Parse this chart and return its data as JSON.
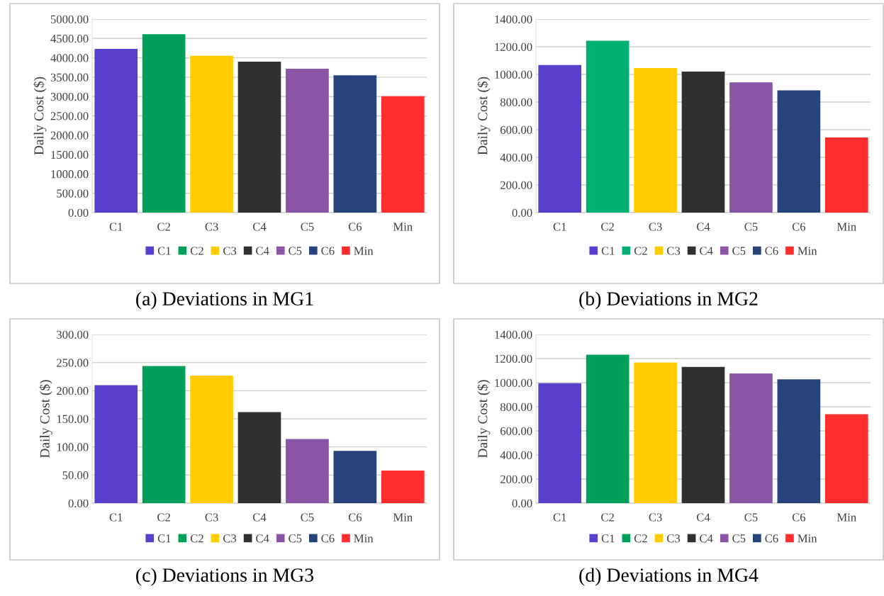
{
  "chart_data": [
    {
      "type": "bar",
      "title": "(a) Deviations in MG1",
      "ylabel": "Daily Cost ($)",
      "categories": [
        "C1",
        "C2",
        "C3",
        "C4",
        "C5",
        "C6",
        "Min"
      ],
      "series": [
        {
          "name": "C1",
          "color": "#5a3ecc",
          "values": [
            4230,
            null,
            null,
            null,
            null,
            null,
            null
          ]
        },
        {
          "name": "C2",
          "color": "#00a05a",
          "values": [
            null,
            4610,
            null,
            null,
            null,
            null,
            null
          ]
        },
        {
          "name": "C3",
          "color": "#ffcc00",
          "values": [
            null,
            null,
            4050,
            null,
            null,
            null,
            null
          ]
        },
        {
          "name": "C4",
          "color": "#303030",
          "values": [
            null,
            null,
            null,
            3900,
            null,
            null,
            null
          ]
        },
        {
          "name": "C5",
          "color": "#8a55a5",
          "values": [
            null,
            null,
            null,
            null,
            3720,
            null,
            null
          ]
        },
        {
          "name": "C6",
          "color": "#26447a",
          "values": [
            null,
            null,
            null,
            null,
            null,
            3550,
            null
          ]
        },
        {
          "name": "Min",
          "color": "#ff2e2e",
          "values": [
            null,
            null,
            null,
            null,
            null,
            null,
            3010
          ]
        }
      ],
      "ylim": [
        0,
        5000
      ],
      "yticks": [
        {
          "value": 0,
          "label": "0.00"
        },
        {
          "value": 500,
          "label": "500.00"
        },
        {
          "value": 1000,
          "label": "1000.00"
        },
        {
          "value": 1500,
          "label": "1500.00"
        },
        {
          "value": 2000,
          "label": "2000.00"
        },
        {
          "value": 2500,
          "label": "2500.00"
        },
        {
          "value": 3000,
          "label": "3000.00"
        },
        {
          "value": 3500,
          "label": "3500.00"
        },
        {
          "value": 4000,
          "label": "4000.00"
        },
        {
          "value": 4500,
          "label": "4500.00"
        },
        {
          "value": 5000,
          "label": "5000.00"
        }
      ],
      "grid": "y",
      "legend": "bottom"
    },
    {
      "type": "bar",
      "title": "(b) Deviations in MG2",
      "ylabel": "Daily Cost ($)",
      "categories": [
        "C1",
        "C2",
        "C3",
        "C4",
        "C5",
        "C6",
        "Min"
      ],
      "series": [
        {
          "name": "C1",
          "color": "#5a3ecc",
          "values": [
            1068,
            null,
            null,
            null,
            null,
            null,
            null
          ]
        },
        {
          "name": "C2",
          "color": "#00b070",
          "values": [
            null,
            1244,
            null,
            null,
            null,
            null,
            null
          ]
        },
        {
          "name": "C3",
          "color": "#ffcc00",
          "values": [
            null,
            null,
            1046,
            null,
            null,
            null,
            null
          ]
        },
        {
          "name": "C4",
          "color": "#303030",
          "values": [
            null,
            null,
            null,
            1020,
            null,
            null,
            null
          ]
        },
        {
          "name": "C5",
          "color": "#8a55a5",
          "values": [
            null,
            null,
            null,
            null,
            942,
            null,
            null
          ]
        },
        {
          "name": "C6",
          "color": "#26447a",
          "values": [
            null,
            null,
            null,
            null,
            null,
            884,
            null
          ]
        },
        {
          "name": "Min",
          "color": "#ff2e2e",
          "values": [
            null,
            null,
            null,
            null,
            null,
            null,
            544
          ]
        }
      ],
      "ylim": [
        0,
        1400
      ],
      "yticks": [
        {
          "value": 0,
          "label": "0.00"
        },
        {
          "value": 200,
          "label": "200.00"
        },
        {
          "value": 400,
          "label": "400.00"
        },
        {
          "value": 600,
          "label": "600.00"
        },
        {
          "value": 800,
          "label": "800.00"
        },
        {
          "value": 1000,
          "label": "1000.00"
        },
        {
          "value": 1200,
          "label": "1200.00"
        },
        {
          "value": 1400,
          "label": "1400.00"
        }
      ],
      "grid": "y",
      "legend": "bottom"
    },
    {
      "type": "bar",
      "title": "(c) Deviations in MG3",
      "ylabel": "Daily Cost ($)",
      "categories": [
        "C1",
        "C2",
        "C3",
        "C4",
        "C5",
        "C6",
        "Min"
      ],
      "series": [
        {
          "name": "C1",
          "color": "#5a3ecc",
          "values": [
            210,
            null,
            null,
            null,
            null,
            null,
            null
          ]
        },
        {
          "name": "C2",
          "color": "#00a05a",
          "values": [
            null,
            244,
            null,
            null,
            null,
            null,
            null
          ]
        },
        {
          "name": "C3",
          "color": "#ffcc00",
          "values": [
            null,
            null,
            227,
            null,
            null,
            null,
            null
          ]
        },
        {
          "name": "C4",
          "color": "#303030",
          "values": [
            null,
            null,
            null,
            162,
            null,
            null,
            null
          ]
        },
        {
          "name": "C5",
          "color": "#8a55a5",
          "values": [
            null,
            null,
            null,
            null,
            114,
            null,
            null
          ]
        },
        {
          "name": "C6",
          "color": "#26447a",
          "values": [
            null,
            null,
            null,
            null,
            null,
            93,
            null
          ]
        },
        {
          "name": "Min",
          "color": "#ff2e2e",
          "values": [
            null,
            null,
            null,
            null,
            null,
            null,
            58
          ]
        }
      ],
      "ylim": [
        0,
        300
      ],
      "yticks": [
        {
          "value": 0,
          "label": "0.00"
        },
        {
          "value": 50,
          "label": "50.00"
        },
        {
          "value": 100,
          "label": "100.00"
        },
        {
          "value": 150,
          "label": "150.00"
        },
        {
          "value": 200,
          "label": "200.00"
        },
        {
          "value": 250,
          "label": "250.00"
        },
        {
          "value": 300,
          "label": "300.00"
        }
      ],
      "grid": "y",
      "legend": "bottom"
    },
    {
      "type": "bar",
      "title": "(d) Deviations in MG4",
      "ylabel": "Daily Cost ($)",
      "categories": [
        "C1",
        "C2",
        "C3",
        "C4",
        "C5",
        "C6",
        "Min"
      ],
      "series": [
        {
          "name": "C1",
          "color": "#5a3ecc",
          "values": [
            996,
            null,
            null,
            null,
            null,
            null,
            null
          ]
        },
        {
          "name": "C2",
          "color": "#00a05a",
          "values": [
            null,
            1233,
            null,
            null,
            null,
            null,
            null
          ]
        },
        {
          "name": "C3",
          "color": "#ffcc00",
          "values": [
            null,
            null,
            1167,
            null,
            null,
            null,
            null
          ]
        },
        {
          "name": "C4",
          "color": "#303030",
          "values": [
            null,
            null,
            null,
            1131,
            null,
            null,
            null
          ]
        },
        {
          "name": "C5",
          "color": "#8a55a5",
          "values": [
            null,
            null,
            null,
            null,
            1076,
            null,
            null
          ]
        },
        {
          "name": "C6",
          "color": "#26447a",
          "values": [
            null,
            null,
            null,
            null,
            null,
            1028,
            null
          ]
        },
        {
          "name": "Min",
          "color": "#ff2e2e",
          "values": [
            null,
            null,
            null,
            null,
            null,
            null,
            738
          ]
        }
      ],
      "ylim": [
        0,
        1400
      ],
      "yticks": [
        {
          "value": 0,
          "label": "0.00"
        },
        {
          "value": 200,
          "label": "200.00"
        },
        {
          "value": 400,
          "label": "400.00"
        },
        {
          "value": 600,
          "label": "600.00"
        },
        {
          "value": 800,
          "label": "800.00"
        },
        {
          "value": 1000,
          "label": "1000.00"
        },
        {
          "value": 1200,
          "label": "1200.00"
        },
        {
          "value": 1400,
          "label": "1400.00"
        }
      ],
      "grid": "y",
      "legend": "bottom"
    }
  ]
}
